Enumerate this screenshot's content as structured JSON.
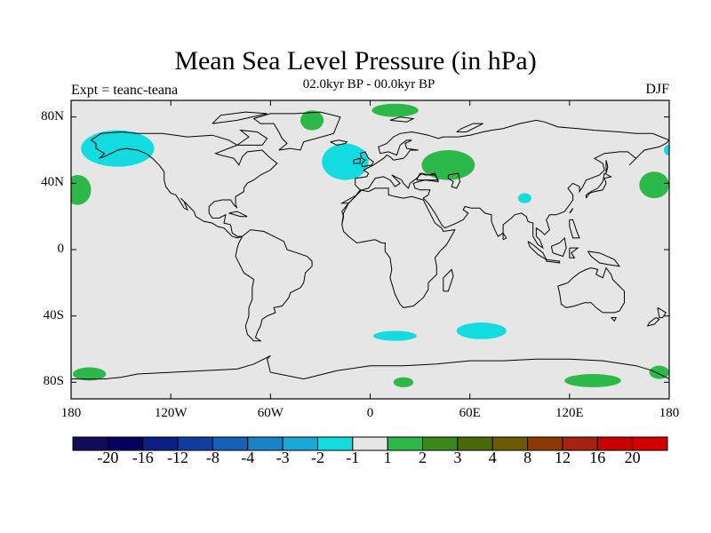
{
  "title": "Mean Sea Level Pressure (in hPa)",
  "header": {
    "left": "Expt = teanc-teana",
    "center": "02.0kyr BP - 00.0kyr BP",
    "right": "DJF"
  },
  "axes": {
    "y_ticks": [
      {
        "label": "80N",
        "value": 80
      },
      {
        "label": "40N",
        "value": 40
      },
      {
        "label": "0",
        "value": 0
      },
      {
        "label": "40S",
        "value": -40
      },
      {
        "label": "80S",
        "value": -80
      }
    ],
    "x_ticks": [
      {
        "label": "180",
        "value": -180
      },
      {
        "label": "120W",
        "value": -120
      },
      {
        "label": "60W",
        "value": -60
      },
      {
        "label": "0",
        "value": 0
      },
      {
        "label": "60E",
        "value": 60
      },
      {
        "label": "120E",
        "value": 120
      },
      {
        "label": "180",
        "value": 180
      }
    ]
  },
  "colorbar": {
    "labels": [
      "-20",
      "-16",
      "-12",
      "-8",
      "-4",
      "-3",
      "-2",
      "-1",
      "1",
      "2",
      "3",
      "4",
      "8",
      "12",
      "16",
      "20"
    ],
    "colors": [
      "#140a5a",
      "#06005c",
      "#0b1f86",
      "#0f3ea0",
      "#1560b8",
      "#1a82c8",
      "#1aa8d8",
      "#12dce0",
      "#e6e6e6",
      "#2db84a",
      "#3a8a1a",
      "#4a6a0a",
      "#6a5a00",
      "#8a3a00",
      "#a82010",
      "#c80000",
      "#d40000"
    ]
  },
  "map_colors": {
    "background": "#e6e6e6",
    "negative": "#12dce0",
    "positive": "#2db84a"
  },
  "anomaly_regions": [
    {
      "name": "n-pacific-low",
      "sign": "negative",
      "lon": -152,
      "lat": 61,
      "rlon": 22,
      "rlat": 11
    },
    {
      "name": "n-pacific-high",
      "sign": "positive",
      "lon": -176,
      "lat": 36,
      "rlon": 8,
      "rlat": 9
    },
    {
      "name": "iceland-low",
      "sign": "negative",
      "lon": -15,
      "lat": 53,
      "rlon": 14,
      "rlat": 11
    },
    {
      "name": "europe-high",
      "sign": "positive",
      "lon": 47,
      "lat": 51,
      "rlon": 16,
      "rlat": 9
    },
    {
      "name": "greenland-high",
      "sign": "positive",
      "lon": -35,
      "lat": 78,
      "rlon": 7,
      "rlat": 6
    },
    {
      "name": "arctic-high",
      "sign": "positive",
      "lon": 15,
      "lat": 84,
      "rlon": 14,
      "rlat": 4
    },
    {
      "name": "tibet-low",
      "sign": "negative",
      "lon": 93,
      "lat": 31,
      "rlon": 4,
      "rlat": 3
    },
    {
      "name": "nw-pacific-high",
      "sign": "positive",
      "lon": 171,
      "lat": 39,
      "rlon": 9,
      "rlat": 8
    },
    {
      "name": "s-atlantic-low",
      "sign": "negative",
      "lon": 15,
      "lat": -52,
      "rlon": 13,
      "rlat": 3
    },
    {
      "name": "s-indian-low",
      "sign": "negative",
      "lon": 67,
      "lat": -49,
      "rlon": 15,
      "rlat": 5
    },
    {
      "name": "s-pacific-high",
      "sign": "positive",
      "lon": -169,
      "lat": -75,
      "rlon": 10,
      "rlat": 4
    },
    {
      "name": "antarctic-high-1",
      "sign": "positive",
      "lon": 20,
      "lat": -80,
      "rlon": 6,
      "rlat": 3
    },
    {
      "name": "antarctic-high-2",
      "sign": "positive",
      "lon": 134,
      "lat": -79,
      "rlon": 17,
      "rlat": 4
    },
    {
      "name": "antarctic-high-3",
      "sign": "positive",
      "lon": 174,
      "lat": -74,
      "rlon": 6,
      "rlat": 4
    }
  ]
}
